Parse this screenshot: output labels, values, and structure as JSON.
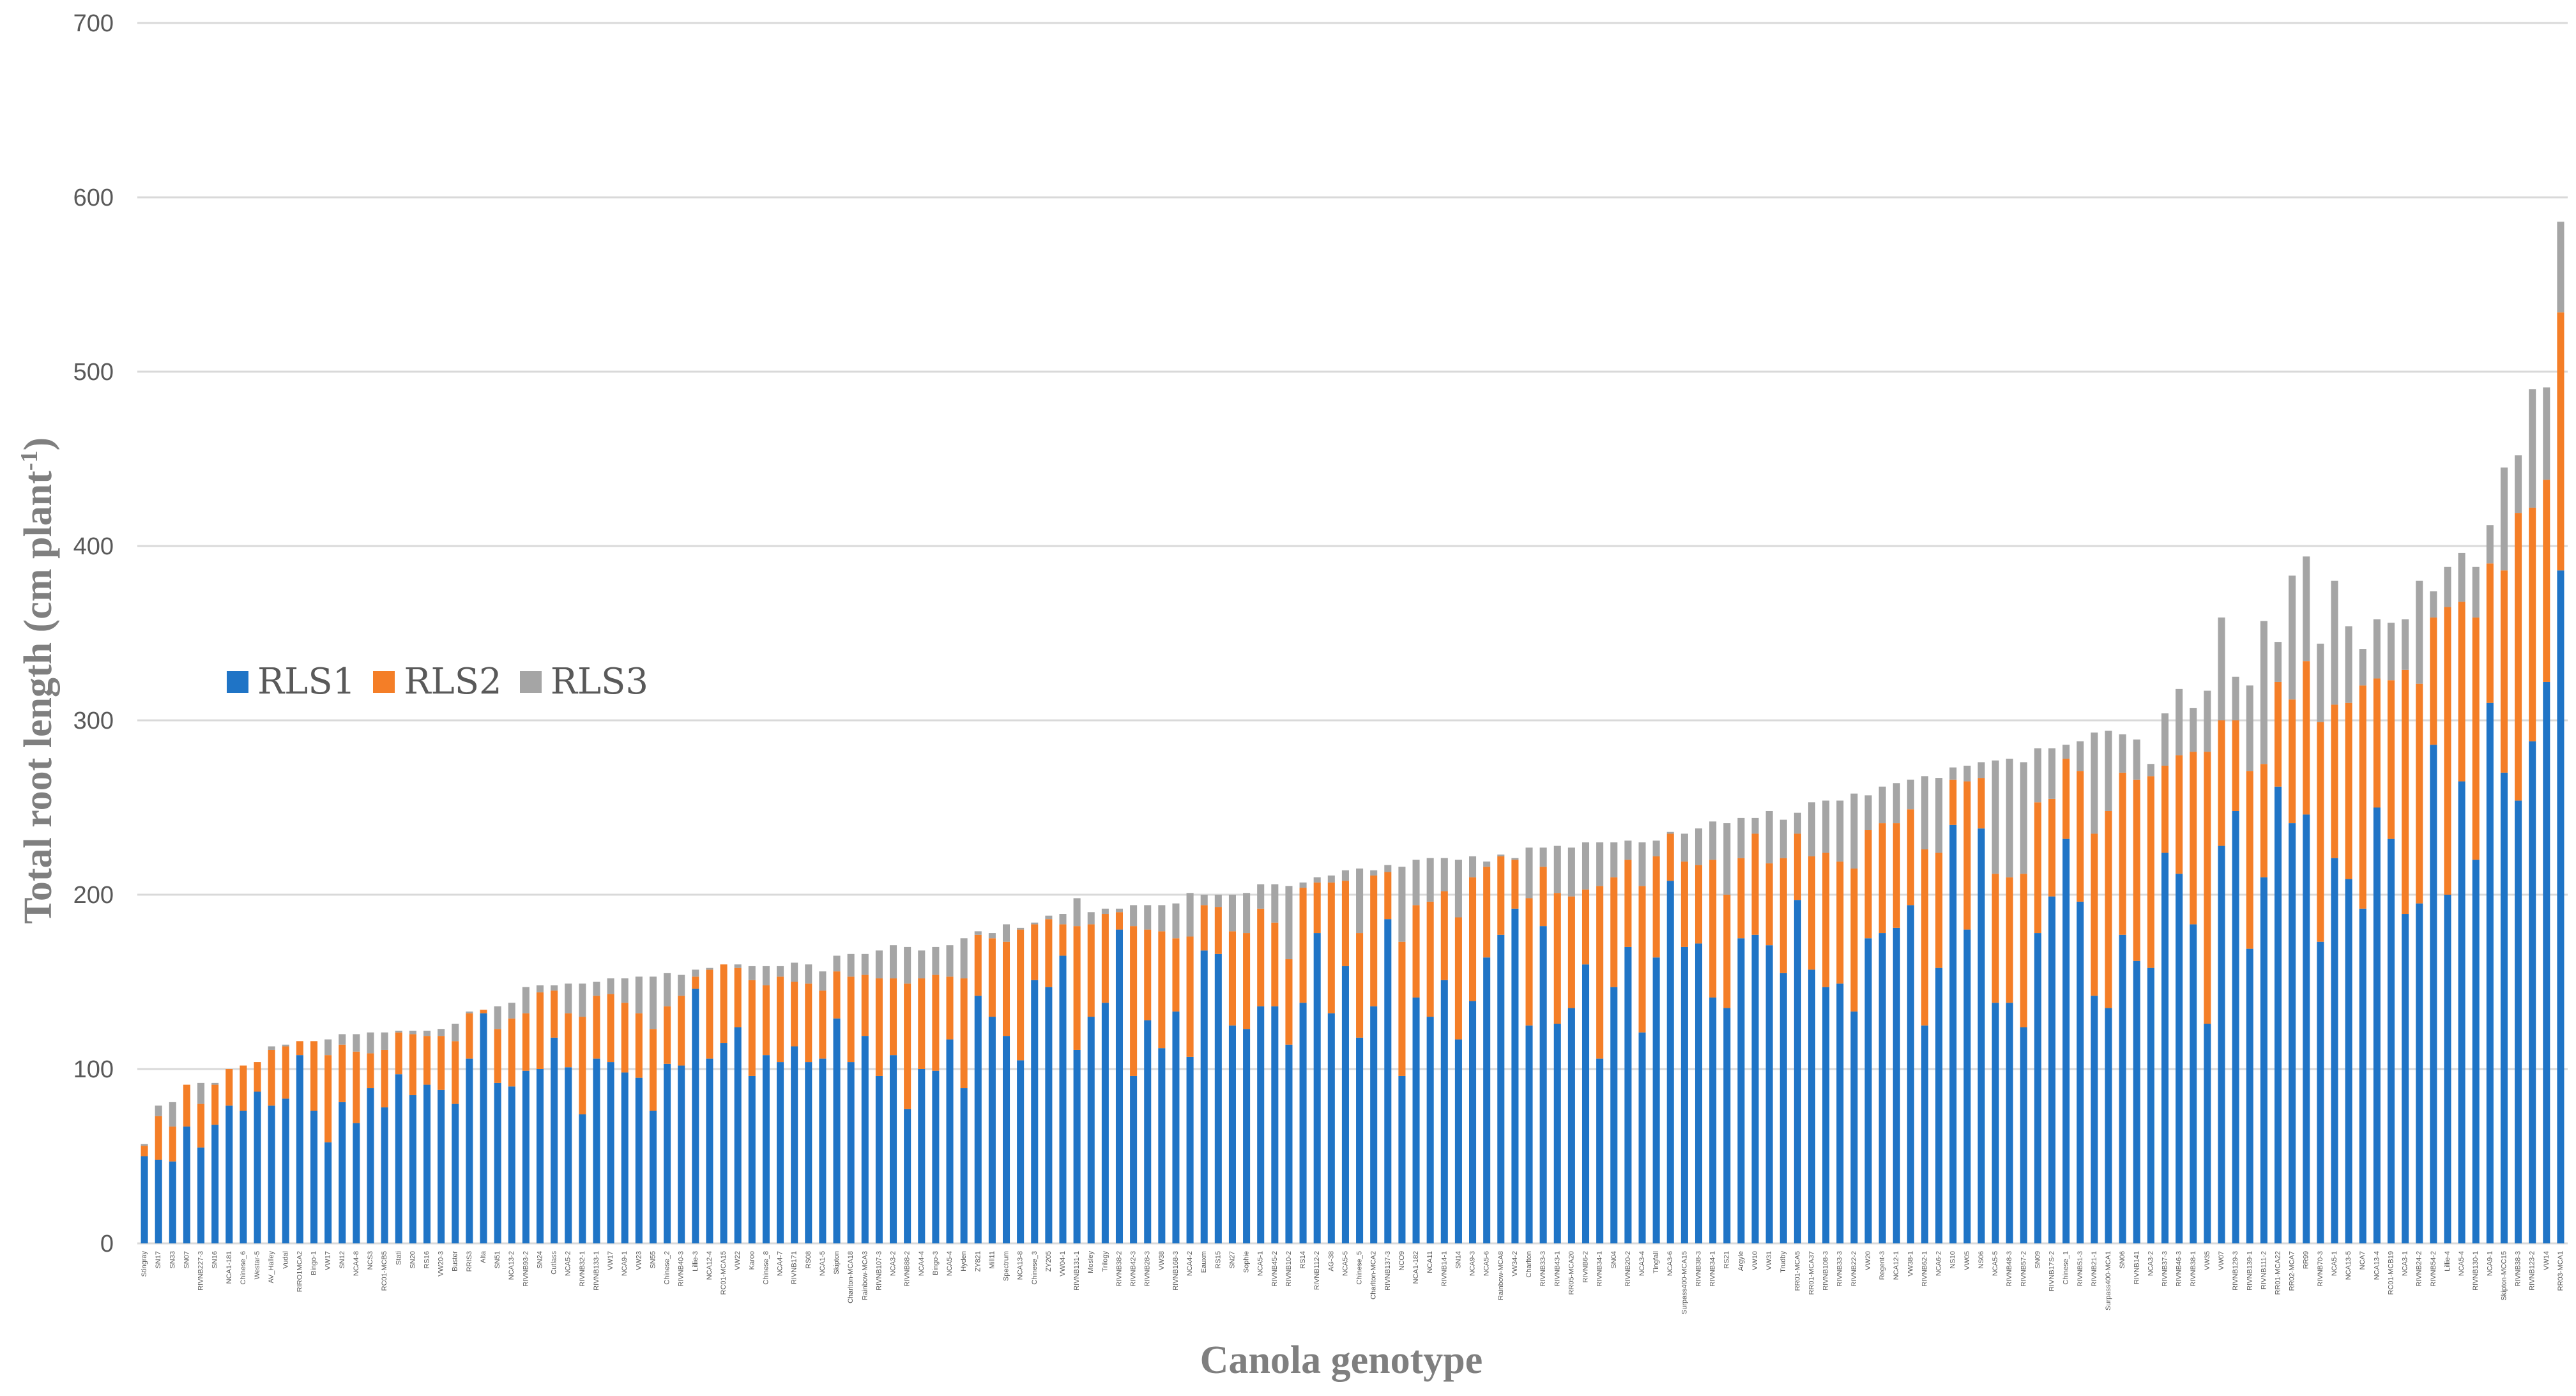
{
  "chart_data": {
    "type": "stacked-bar",
    "xlabel": "Canola genotype",
    "ylabel": "Total root length (cm plant",
    "ylabel_sup": "-1",
    "ylabel_close": ")",
    "ylim": [
      0,
      700
    ],
    "yticks": [
      0,
      100,
      200,
      300,
      400,
      500,
      600,
      700
    ],
    "grid": true,
    "legend_position": "left-middle",
    "series": [
      {
        "name": "RLS1",
        "color": "#1f74c6"
      },
      {
        "name": "RLS2",
        "color": "#f47e27"
      },
      {
        "name": "RLS3",
        "color": "#a5a5a5"
      }
    ],
    "categories": [
      "Stingray",
      "SN17",
      "SN33",
      "SN07",
      "RIVNB227-3",
      "SN16",
      "NCA1-181",
      "Chinese_6",
      "Westar-5",
      "AV_Halley",
      "Vudal",
      "RIRO1MCA2",
      "Bingo-1",
      "VW17",
      "SN12",
      "NCA4-8",
      "NCS3",
      "RC01-MCB5",
      "Stati",
      "SN20",
      "RS16",
      "VW20-3",
      "Buster",
      "RRIS3",
      "Alta",
      "SN51",
      "NCA13-2",
      "RIVNB93-2",
      "SN24",
      "Cutlass",
      "NCA5-2",
      "RIVNB32-1",
      "RIVNB133-1",
      "VW17",
      "NCA9-1",
      "VW23",
      "SN55",
      "Chinese_2",
      "RIVNB40-3",
      "Lillie-3",
      "NCA12-4",
      "RC01-MCA15",
      "VW22",
      "Karoo",
      "Chinese_8",
      "NCA4-7",
      "RIVNB171",
      "RS08",
      "NCA1-5",
      "Skipton",
      "Charlton-MCA18",
      "Rainbow-MCA3",
      "RIVNB107-3",
      "NCA3-2",
      "RIVNB88-2",
      "NCA4-4",
      "Bingo-3",
      "NCA5-4",
      "Hyden",
      "ZY821",
      "Mill11",
      "Spectrum",
      "NCA13-8",
      "Chinese_3",
      "ZY205",
      "VW04-1",
      "RIVNB131-1",
      "Mosley",
      "Trilogy",
      "RIVNB38-2",
      "RIVNB42-3",
      "RIVNB28-3",
      "VW38",
      "RIVNB168-3",
      "NCA4-2",
      "Eauxm",
      "RS15",
      "SN27",
      "Sophie",
      "NCA5-1",
      "RIVNB45-2",
      "RIVNB10-2",
      "RS14",
      "RIVNB112-2",
      "AG-38",
      "NCA5-5",
      "Chinese_5",
      "Charlton-MCA2",
      "RIVNB137-3",
      "NCO9",
      "NCA1-182",
      "NCA11",
      "RIVNB14-1",
      "SN14",
      "NCA9-3",
      "NCA5-6",
      "Rainbow-MCA8",
      "VW34-2",
      "Charlton",
      "RIVNB33-3",
      "RIVNB43-1",
      "RR05-MCA20",
      "RIVNB6-2",
      "RIVNB34-1",
      "SN04",
      "RIVNB20-2",
      "NCA3-4",
      "Tingfall",
      "NCA3-6",
      "Surpass400-MCA15",
      "RIVNB38-3",
      "RIVNB34-1",
      "RS21",
      "Argyle",
      "VW10",
      "VW31",
      "Trudby",
      "RR01-MCA5",
      "RR01-MCA37",
      "RIVNB108-3",
      "RIVNB33-3",
      "RIVNB22-2",
      "VW20",
      "Regent-3",
      "NCA12-1",
      "VW38-1",
      "RIVNB62-1",
      "NCA6-2",
      "NS10",
      "VW05",
      "NS06",
      "NCA5-5",
      "RIVNB48-3",
      "RIVNB57-2",
      "SN09",
      "RIVNB17S-2",
      "Chinese_1",
      "RIVNB51-3",
      "RIVNB21-1",
      "Surpass400-MCA1",
      "SN06",
      "RIVNB141",
      "NCA3-2",
      "RIVNB37-3",
      "RIVNB46-3",
      "RIVNB38-1",
      "VW35",
      "VW07",
      "RIVNB129-3",
      "RIVNB139-1",
      "RIVNB111-2",
      "RR01-MCA22",
      "RR02-MCA7",
      "RR99",
      "RIVNB70-3",
      "NCA5-1",
      "NCA13-5",
      "NCA7",
      "NCA13-4",
      "RC01-MCB19",
      "NCA3-1",
      "RIVNB24-2",
      "RIVNB54-2",
      "Lillie-4",
      "NCA5-4",
      "RIVNB130-1",
      "NCA9-1",
      "Skipton-MCC15",
      "RIVNB38-3",
      "RIVNB123-2",
      "VW14",
      "RR03-MCA1"
    ],
    "values": {
      "RLS1": [
        50,
        48,
        47,
        67,
        55,
        68,
        79,
        76,
        87,
        79,
        83,
        108,
        76,
        58,
        81,
        69,
        89,
        78,
        97,
        85,
        91,
        88,
        80,
        106,
        132,
        92,
        90,
        99,
        100,
        118,
        101,
        74,
        106,
        104,
        98,
        95,
        76,
        103,
        102,
        146,
        106,
        115,
        124,
        96,
        108,
        104,
        113,
        104,
        106,
        129,
        104,
        119,
        96,
        108,
        77,
        100,
        99,
        117,
        89,
        142,
        130,
        119,
        105,
        151,
        147,
        165,
        111,
        130,
        138,
        180,
        96,
        128,
        112,
        133,
        107,
        168,
        166,
        125,
        123,
        136,
        136,
        114,
        138,
        178,
        132,
        159,
        118,
        136,
        186,
        96,
        141,
        130,
        151,
        117,
        139,
        164,
        177,
        192,
        125,
        182,
        126,
        135,
        160,
        106,
        147,
        170,
        121,
        164,
        208,
        170,
        172,
        141,
        135,
        175,
        177,
        171,
        155,
        197,
        157,
        147,
        149,
        133,
        175,
        178,
        181,
        194,
        125,
        158,
        240,
        180,
        238,
        138,
        138,
        124,
        178,
        199,
        232,
        196,
        142,
        135,
        177,
        162,
        158,
        224,
        212,
        183,
        126,
        228,
        248,
        169,
        210,
        262,
        241,
        246,
        173,
        221,
        209,
        192,
        250,
        232,
        189,
        195,
        286,
        200,
        265,
        220,
        310,
        270,
        254,
        288,
        322,
        386
      ],
      "RLS2": [
        6,
        25,
        20,
        24,
        25,
        23,
        21,
        26,
        17,
        32,
        30,
        8,
        40,
        50,
        33,
        41,
        20,
        33,
        24,
        35,
        28,
        31,
        36,
        26,
        2,
        31,
        39,
        33,
        44,
        27,
        31,
        56,
        36,
        39,
        40,
        37,
        47,
        33,
        40,
        7,
        51,
        45,
        34,
        55,
        40,
        49,
        37,
        45,
        39,
        27,
        49,
        35,
        56,
        44,
        72,
        52,
        55,
        36,
        63,
        35,
        45,
        54,
        75,
        32,
        39,
        18,
        71,
        53,
        51,
        10,
        86,
        52,
        67,
        42,
        69,
        26,
        27,
        54,
        55,
        56,
        48,
        49,
        66,
        29,
        75,
        49,
        60,
        75,
        27,
        77,
        53,
        66,
        51,
        70,
        71,
        52,
        45,
        28,
        73,
        34,
        75,
        64,
        43,
        99,
        63,
        50,
        84,
        58,
        27,
        49,
        45,
        79,
        65,
        46,
        58,
        47,
        66,
        38,
        65,
        77,
        70,
        82,
        62,
        63,
        60,
        55,
        101,
        66,
        26,
        85,
        29,
        74,
        72,
        88,
        75,
        56,
        46,
        75,
        93,
        113,
        93,
        104,
        110,
        50,
        68,
        99,
        156,
        72,
        52,
        102,
        65,
        60,
        71,
        88,
        126,
        88,
        101,
        128,
        74,
        91,
        140,
        126,
        73,
        165,
        103,
        139,
        80,
        116,
        165,
        134,
        116,
        148
      ],
      "RLS3": [
        1,
        6,
        14,
        0,
        12,
        1,
        0,
        0,
        0,
        2,
        1,
        0,
        0,
        9,
        6,
        10,
        12,
        10,
        1,
        2,
        3,
        4,
        10,
        1,
        0,
        13,
        9,
        15,
        4,
        3,
        17,
        19,
        8,
        9,
        14,
        21,
        30,
        19,
        12,
        4,
        1,
        0,
        2,
        8,
        11,
        6,
        11,
        11,
        11,
        9,
        13,
        12,
        16,
        19,
        21,
        16,
        16,
        18,
        23,
        2,
        3,
        10,
        1,
        1,
        2,
        6,
        16,
        7,
        3,
        2,
        12,
        14,
        15,
        20,
        25,
        6,
        7,
        21,
        23,
        14,
        22,
        42,
        3,
        3,
        4,
        6,
        37,
        3,
        4,
        43,
        26,
        25,
        19,
        33,
        12,
        3,
        1,
        1,
        29,
        11,
        27,
        28,
        27,
        25,
        20,
        11,
        25,
        9,
        1,
        16,
        21,
        22,
        41,
        23,
        9,
        30,
        22,
        12,
        31,
        30,
        35,
        43,
        20,
        21,
        23,
        17,
        42,
        43,
        7,
        9,
        9,
        65,
        68,
        64,
        31,
        29,
        8,
        17,
        58,
        46,
        22,
        23,
        7,
        30,
        38,
        25,
        35,
        59,
        25,
        49,
        82,
        23,
        71,
        60,
        45,
        71,
        44,
        21,
        34,
        33,
        29,
        59,
        15,
        23,
        28,
        29,
        22,
        59,
        33,
        68,
        53,
        52
      ]
    }
  }
}
